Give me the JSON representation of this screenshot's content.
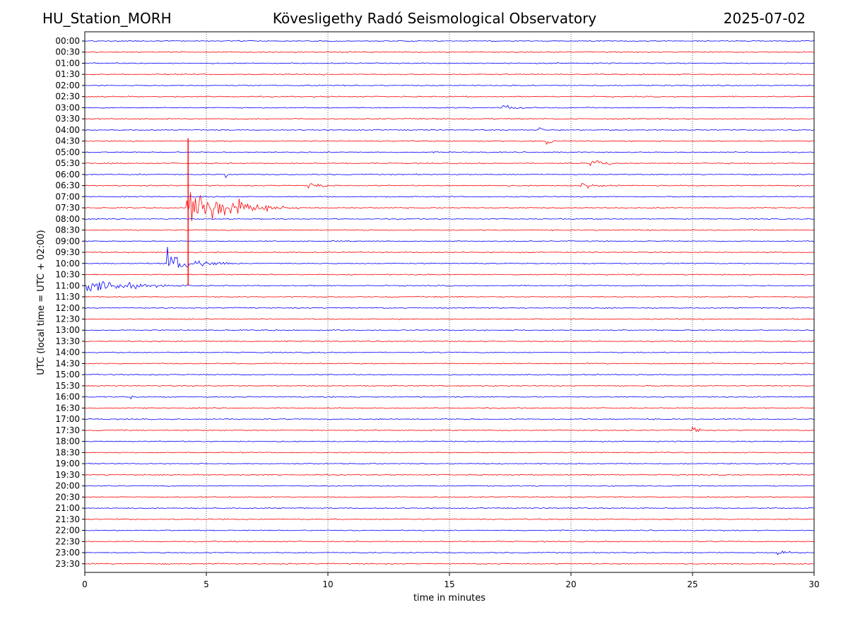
{
  "header": {
    "station": "HU_Station_MORH",
    "title": "Kövesligethy Radó Seismological Observatory",
    "date": "2025-07-02"
  },
  "chart_data": {
    "type": "line",
    "title": "Kövesligethy Radó Seismological Observatory",
    "xlabel": "time in minutes",
    "ylabel": "UTC (local time = UTC + 02:00)",
    "xlim": [
      0,
      30
    ],
    "x_ticks": [
      0,
      5,
      10,
      15,
      20,
      25,
      30
    ],
    "x_tick_labels": [
      "0",
      "5",
      "10",
      "15",
      "20",
      "25",
      "30"
    ],
    "grid": "vertical-dotted",
    "row_labels": [
      "00:00",
      "00:30",
      "01:00",
      "01:30",
      "02:00",
      "02:30",
      "03:00",
      "03:30",
      "04:00",
      "04:30",
      "05:00",
      "05:30",
      "06:00",
      "06:30",
      "07:00",
      "07:30",
      "08:00",
      "08:30",
      "09:00",
      "09:30",
      "10:00",
      "10:30",
      "11:00",
      "11:30",
      "12:00",
      "12:30",
      "13:00",
      "13:30",
      "14:00",
      "14:30",
      "15:00",
      "15:30",
      "16:00",
      "16:30",
      "17:00",
      "17:30",
      "18:00",
      "18:30",
      "19:00",
      "19:30",
      "20:00",
      "20:30",
      "21:00",
      "21:30",
      "22:00",
      "22:30",
      "23:00",
      "23:30"
    ],
    "series_colors": [
      "#0000ff",
      "#ff0000"
    ],
    "events": [
      {
        "row": "03:00",
        "start": 17.2,
        "duration": 1.5,
        "amp": 0.18
      },
      {
        "row": "04:00",
        "start": 18.7,
        "duration": 0.4,
        "amp": 0.28
      },
      {
        "row": "04:30",
        "start": 19.0,
        "duration": 0.5,
        "amp": 0.22
      },
      {
        "row": "05:30",
        "start": 20.8,
        "duration": 1.6,
        "amp": 0.22
      },
      {
        "row": "06:00",
        "start": 5.8,
        "duration": 0.4,
        "amp": 0.15
      },
      {
        "row": "06:30",
        "start": 9.2,
        "duration": 1.5,
        "amp": 0.2
      },
      {
        "row": "06:30",
        "start": 20.4,
        "duration": 1.5,
        "amp": 0.15
      },
      {
        "row": "07:30",
        "start": 4.2,
        "duration": 4.8,
        "amp": 1.0
      },
      {
        "row": "07:30",
        "start": 6.3,
        "duration": 0.6,
        "amp": 0.45
      },
      {
        "row": "10:00",
        "start": 3.4,
        "duration": 2.8,
        "amp": 0.6
      },
      {
        "row": "11:00",
        "start": 0.0,
        "duration": 5.0,
        "amp": 0.35
      },
      {
        "row": "16:00",
        "start": 1.9,
        "duration": 0.4,
        "amp": 0.12
      },
      {
        "row": "17:30",
        "start": 25.0,
        "duration": 0.7,
        "amp": 0.2
      },
      {
        "row": "23:00",
        "start": 28.5,
        "duration": 1.5,
        "amp": 0.2
      }
    ],
    "spike": {
      "row_from": "04:30",
      "row_to": "11:00",
      "x": 4.25
    }
  }
}
